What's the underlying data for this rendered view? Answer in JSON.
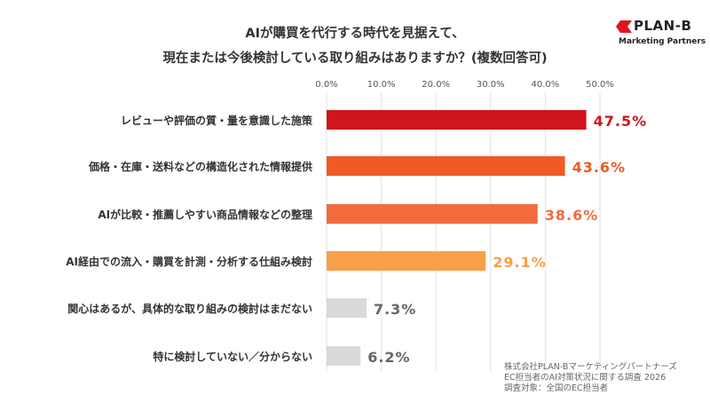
{
  "logo": {
    "name": "PLAN-B",
    "tagline": "Marketing Partners"
  },
  "chart_data": {
    "type": "bar",
    "orientation": "horizontal",
    "title": [
      "AIが購買を代行する時代を見据えて、",
      "現在または今後検討している取り組みはありますか？(複数回答可)"
    ],
    "categories": [
      "レビューや評価の質・量を意識した施策",
      "価格・在庫・送料などの構造化された情報提供",
      "AIが比較・推薦しやすい商品情報などの整理",
      "AI経由での流入・購買を計測・分析する仕組み検討",
      "関心はあるが、具体的な取り組みの検討はまだない",
      "特に検討していない／分からない"
    ],
    "values": [
      47.5,
      43.6,
      38.6,
      29.1,
      7.3,
      6.2
    ],
    "value_labels": [
      "47.5%",
      "43.6%",
      "38.6%",
      "29.1%",
      "7.3%",
      "6.2%"
    ],
    "colors": [
      "#d0151c",
      "#f05a24",
      "#f26b3d",
      "#f7a04a",
      "#d9d9d9",
      "#d9d9d9"
    ],
    "label_colors": [
      "#d0151c",
      "#f05a24",
      "#f26b3d",
      "#f7a04a",
      "#666666",
      "#666666"
    ],
    "xlim": [
      0,
      50
    ],
    "ticks": [
      0,
      10,
      20,
      30,
      40,
      50
    ],
    "tick_labels": [
      "0.0%",
      "10.0%",
      "20.0%",
      "30.0%",
      "40.0%",
      "50.0%"
    ],
    "grid": true
  },
  "source": [
    "株式会社PLAN-Bマーケティングパートナーズ",
    "EC担当者のAI対策状況に関する調査 2026",
    "調査対象：全国のEC担当者"
  ]
}
